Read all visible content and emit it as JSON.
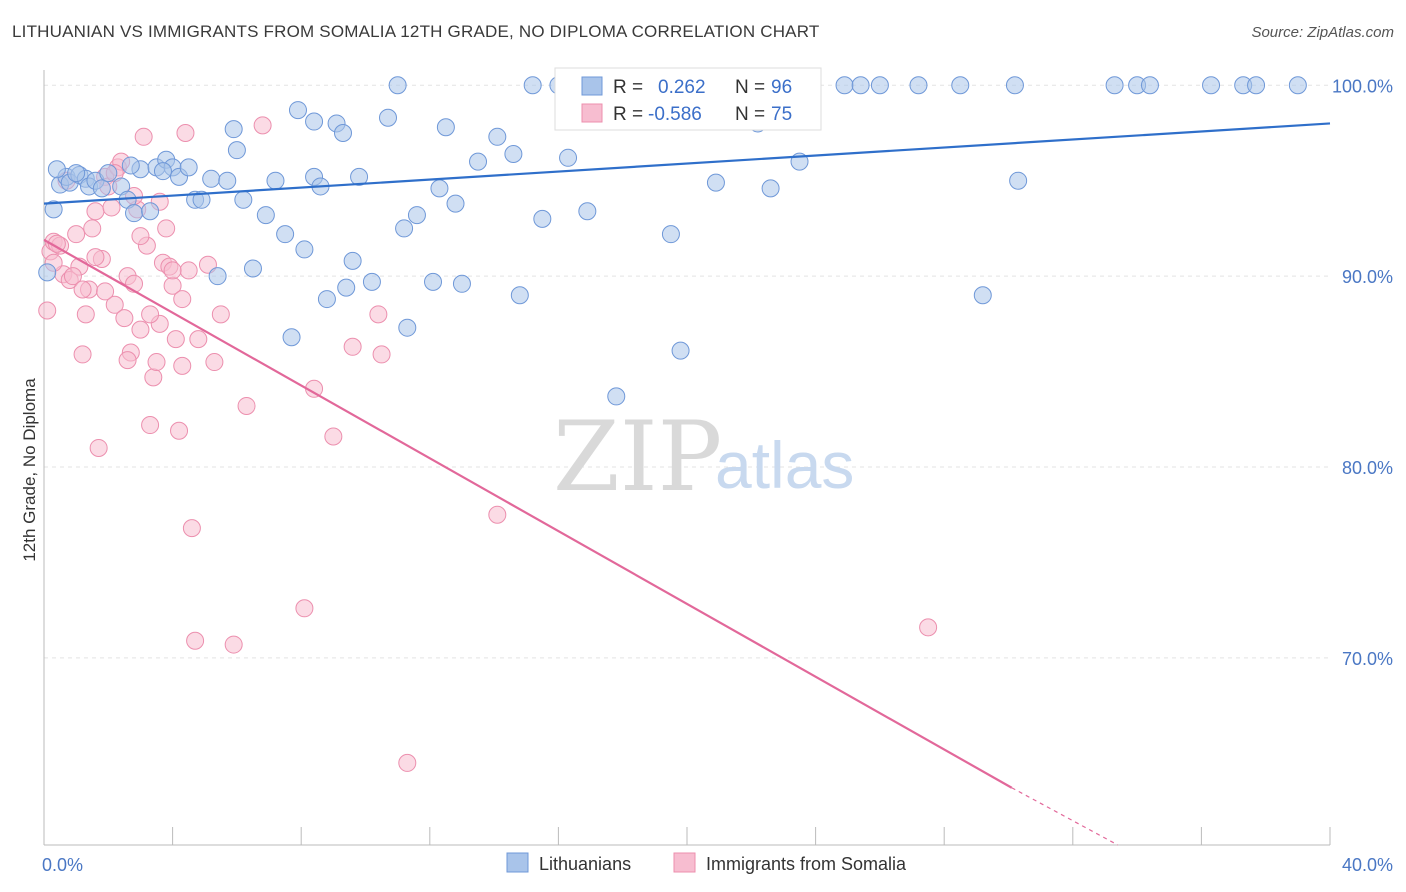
{
  "header": {
    "title": "LITHUANIAN VS IMMIGRANTS FROM SOMALIA 12TH GRADE, NO DIPLOMA CORRELATION CHART",
    "source": "Source: ZipAtlas.com"
  },
  "watermark": {
    "zip": "ZIP",
    "atlas": "atlas"
  },
  "legend": {
    "r_label": "R =",
    "n_label": "N =",
    "lithuanians": {
      "r": "0.262",
      "n": "96"
    },
    "somalia": {
      "r": "-0.586",
      "n": "75"
    }
  },
  "bottom_legend": {
    "series1": "Lithuanians",
    "series2": "Immigrants from Somalia"
  },
  "colors": {
    "blue_fill": "#a9c4ea",
    "blue_stroke": "#6f98d8",
    "blue_line": "#2f6fca",
    "pink_fill": "#f7bdd0",
    "pink_stroke": "#ec8fae",
    "pink_line": "#e2689a",
    "tick_text": "#4a77c4"
  },
  "chart_data": {
    "type": "scatter",
    "title": "LITHUANIAN VS IMMIGRANTS FROM SOMALIA 12TH GRADE, NO DIPLOMA CORRELATION CHART",
    "xlabel": "",
    "ylabel": "12th Grade, No Diploma",
    "xlim": [
      0,
      40
    ],
    "ylim": [
      60.2,
      100.8
    ],
    "x_ticks": [
      "0.0%",
      "40.0%"
    ],
    "y_ticks": [
      {
        "value": 100,
        "label": "100.0%"
      },
      {
        "value": 90,
        "label": "90.0%"
      },
      {
        "value": 80,
        "label": "80.0%"
      },
      {
        "value": 70,
        "label": "70.0%"
      }
    ],
    "grid": true,
    "legend_position": "top-center",
    "series": [
      {
        "name": "Lithuanians",
        "color": "#a9c4ea",
        "trend": {
          "x": [
            0,
            40
          ],
          "y": [
            93.8,
            98.0
          ]
        },
        "points": [
          [
            0.3,
            93.5
          ],
          [
            0.5,
            94.8
          ],
          [
            0.7,
            95.2
          ],
          [
            0.8,
            94.9
          ],
          [
            1.1,
            95.3
          ],
          [
            1.3,
            95.1
          ],
          [
            1.4,
            94.7
          ],
          [
            1.6,
            95.0
          ],
          [
            1.8,
            94.6
          ],
          [
            2.0,
            95.4
          ],
          [
            2.4,
            94.7
          ],
          [
            2.6,
            94.0
          ],
          [
            2.8,
            93.3
          ],
          [
            3.0,
            95.6
          ],
          [
            3.3,
            93.4
          ],
          [
            3.5,
            95.7
          ],
          [
            3.8,
            96.1
          ],
          [
            4.0,
            95.7
          ],
          [
            4.2,
            95.2
          ],
          [
            4.5,
            95.7
          ],
          [
            4.7,
            94.0
          ],
          [
            5.2,
            95.1
          ],
          [
            5.4,
            90.0
          ],
          [
            5.7,
            95.0
          ],
          [
            6.0,
            96.6
          ],
          [
            6.2,
            94.0
          ],
          [
            6.5,
            90.4
          ],
          [
            6.9,
            93.2
          ],
          [
            7.2,
            95.0
          ],
          [
            7.5,
            92.2
          ],
          [
            7.7,
            86.8
          ],
          [
            7.9,
            98.7
          ],
          [
            8.1,
            91.4
          ],
          [
            8.4,
            95.2
          ],
          [
            8.6,
            94.7
          ],
          [
            8.8,
            88.8
          ],
          [
            9.1,
            98.0
          ],
          [
            9.4,
            89.4
          ],
          [
            9.6,
            90.8
          ],
          [
            9.8,
            95.2
          ],
          [
            10.2,
            89.7
          ],
          [
            10.7,
            98.3
          ],
          [
            11.2,
            92.5
          ],
          [
            11.3,
            87.3
          ],
          [
            11.6,
            93.2
          ],
          [
            12.1,
            89.7
          ],
          [
            12.3,
            94.6
          ],
          [
            12.5,
            97.8
          ],
          [
            12.8,
            93.8
          ],
          [
            13.0,
            89.6
          ],
          [
            13.5,
            96.0
          ],
          [
            14.1,
            97.3
          ],
          [
            14.6,
            96.4
          ],
          [
            14.8,
            89.0
          ],
          [
            15.5,
            93.0
          ],
          [
            16.3,
            96.2
          ],
          [
            16.9,
            93.4
          ],
          [
            17.8,
            83.7
          ],
          [
            19.5,
            92.2
          ],
          [
            19.8,
            86.1
          ],
          [
            20.9,
            94.9
          ],
          [
            22.2,
            98.0
          ],
          [
            22.6,
            94.6
          ],
          [
            23.5,
            96.0
          ],
          [
            29.2,
            89.0
          ],
          [
            30.3,
            95.0
          ],
          [
            34.0,
            100.0
          ],
          [
            0.1,
            90.2
          ],
          [
            0.4,
            95.6
          ],
          [
            1.0,
            95.4
          ],
          [
            2.7,
            95.8
          ],
          [
            3.7,
            95.5
          ],
          [
            4.9,
            94.0
          ],
          [
            5.9,
            97.7
          ],
          [
            9.3,
            97.5
          ],
          [
            11.0,
            100.0
          ],
          [
            15.2,
            100.0
          ],
          [
            16.0,
            100.0
          ],
          [
            19.2,
            100.0
          ],
          [
            20.4,
            100.0
          ],
          [
            21.8,
            100.0
          ],
          [
            22.4,
            100.0
          ],
          [
            23.7,
            100.0
          ],
          [
            24.9,
            100.0
          ],
          [
            25.4,
            100.0
          ],
          [
            26.0,
            100.0
          ],
          [
            27.2,
            100.0
          ],
          [
            28.5,
            100.0
          ],
          [
            30.2,
            100.0
          ],
          [
            33.3,
            100.0
          ],
          [
            34.4,
            100.0
          ],
          [
            36.3,
            100.0
          ],
          [
            37.3,
            100.0
          ],
          [
            37.7,
            100.0
          ],
          [
            39.0,
            100.0
          ],
          [
            8.4,
            98.1
          ]
        ]
      },
      {
        "name": "Immigrants from Somalia",
        "color": "#f7bdd0",
        "trend": {
          "x": [
            0,
            30.1
          ],
          "y": [
            91.9,
            63.2
          ]
        },
        "trend_dashed": {
          "x": [
            30.1,
            33.4
          ],
          "y": [
            63.2,
            60.2
          ]
        },
        "points": [
          [
            0.1,
            88.2
          ],
          [
            0.2,
            91.3
          ],
          [
            0.3,
            91.8
          ],
          [
            0.5,
            91.6
          ],
          [
            0.6,
            90.1
          ],
          [
            0.7,
            95.0
          ],
          [
            0.8,
            89.8
          ],
          [
            1.0,
            92.2
          ],
          [
            1.1,
            90.5
          ],
          [
            1.2,
            85.9
          ],
          [
            1.3,
            88.0
          ],
          [
            1.4,
            89.3
          ],
          [
            1.5,
            92.5
          ],
          [
            1.6,
            93.4
          ],
          [
            1.7,
            81.0
          ],
          [
            1.8,
            90.9
          ],
          [
            1.9,
            95.2
          ],
          [
            2.0,
            94.7
          ],
          [
            2.1,
            93.6
          ],
          [
            2.2,
            88.5
          ],
          [
            2.3,
            95.7
          ],
          [
            2.5,
            87.8
          ],
          [
            2.6,
            90.0
          ],
          [
            2.7,
            86.0
          ],
          [
            2.8,
            89.6
          ],
          [
            2.9,
            93.5
          ],
          [
            3.0,
            87.2
          ],
          [
            3.1,
            97.3
          ],
          [
            3.2,
            91.6
          ],
          [
            3.3,
            82.2
          ],
          [
            3.4,
            84.7
          ],
          [
            3.5,
            85.5
          ],
          [
            3.6,
            93.9
          ],
          [
            3.7,
            90.7
          ],
          [
            3.8,
            92.5
          ],
          [
            3.9,
            90.5
          ],
          [
            4.0,
            89.5
          ],
          [
            4.1,
            86.7
          ],
          [
            4.2,
            81.9
          ],
          [
            4.3,
            88.8
          ],
          [
            4.4,
            97.5
          ],
          [
            4.5,
            90.3
          ],
          [
            4.6,
            76.8
          ],
          [
            4.7,
            70.9
          ],
          [
            4.8,
            86.7
          ],
          [
            5.1,
            90.6
          ],
          [
            5.3,
            85.5
          ],
          [
            5.5,
            88.0
          ],
          [
            5.9,
            70.7
          ],
          [
            6.3,
            83.2
          ],
          [
            6.8,
            97.9
          ],
          [
            8.1,
            72.6
          ],
          [
            8.4,
            84.1
          ],
          [
            9.0,
            81.6
          ],
          [
            9.6,
            86.3
          ],
          [
            10.4,
            88.0
          ],
          [
            10.5,
            85.9
          ],
          [
            11.3,
            64.5
          ],
          [
            14.1,
            77.5
          ],
          [
            27.5,
            71.6
          ],
          [
            0.4,
            91.7
          ],
          [
            0.9,
            90.0
          ],
          [
            1.6,
            91.0
          ],
          [
            2.4,
            96.0
          ],
          [
            2.8,
            94.2
          ],
          [
            3.0,
            92.1
          ],
          [
            3.6,
            87.5
          ],
          [
            4.0,
            90.3
          ],
          [
            4.3,
            85.3
          ],
          [
            1.9,
            89.2
          ],
          [
            0.3,
            90.7
          ],
          [
            1.2,
            89.3
          ],
          [
            2.6,
            85.6
          ],
          [
            3.3,
            88.0
          ],
          [
            2.2,
            95.4
          ]
        ]
      }
    ]
  }
}
